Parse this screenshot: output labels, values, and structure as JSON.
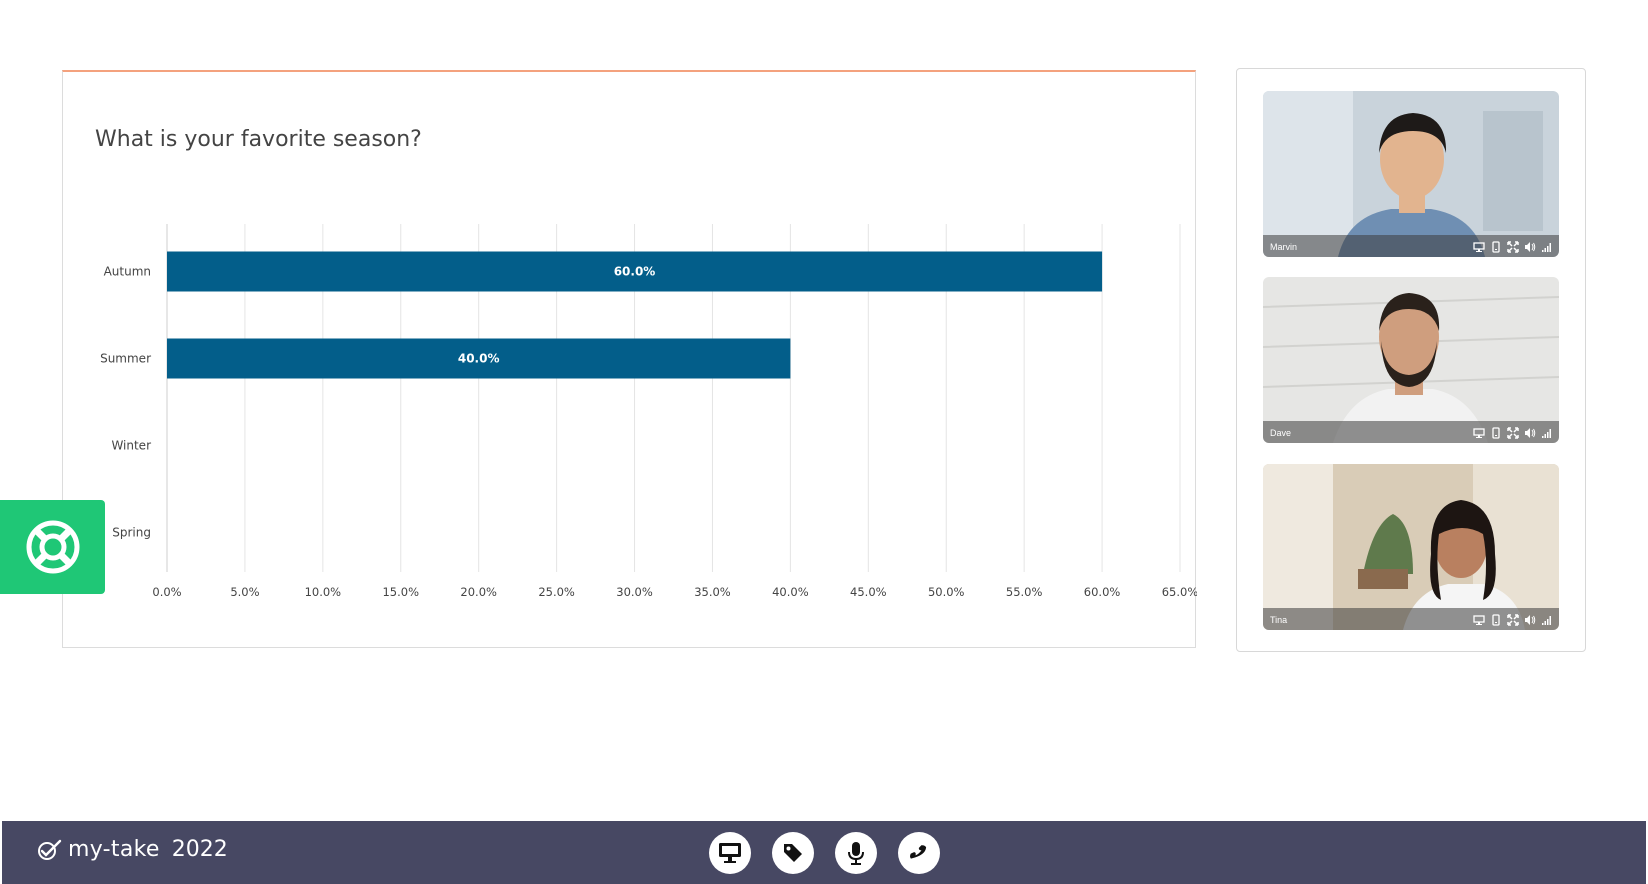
{
  "poll": {
    "title": "What is your favorite season?"
  },
  "chart_data": {
    "type": "bar",
    "orientation": "horizontal",
    "title": "What is your favorite season?",
    "categories": [
      "Autumn",
      "Summer",
      "Winter",
      "Spring"
    ],
    "values": [
      60.0,
      40.0,
      0,
      0
    ],
    "value_labels": [
      "60.0%",
      "40.0%",
      "",
      ""
    ],
    "xlim": [
      0,
      65
    ],
    "xticks": [
      "0.0%",
      "5.0%",
      "10.0%",
      "15.0%",
      "20.0%",
      "25.0%",
      "30.0%",
      "35.0%",
      "40.0%",
      "45.0%",
      "50.0%",
      "55.0%",
      "60.0%",
      "65.0%"
    ],
    "grid": true,
    "bar_color": "#035e8a"
  },
  "participants": [
    {
      "name": "Marvin",
      "bg": "#c9d3db",
      "skin": "#e2b48f",
      "hair": "#1e1a18",
      "shirt": "#6f8fb3"
    },
    {
      "name": "Dave",
      "bg": "#e6e6e4",
      "skin": "#cf9e7e",
      "hair": "#2a211b",
      "shirt": "#f2f2f2"
    },
    {
      "name": "Tina",
      "bg": "#d9ccb7",
      "skin": "#b98060",
      "hair": "#1d1512",
      "shirt": "#f5f5f5"
    }
  ],
  "footer": {
    "logo_text": "my-take",
    "logo_year": "2022",
    "buttons": [
      "screen-share-icon",
      "tag-icon",
      "microphone-icon",
      "phone-icon"
    ]
  },
  "colors": {
    "accent": "#f4a27e",
    "bar": "#035e8a",
    "help": "#1fc776",
    "footer": "#474863"
  }
}
